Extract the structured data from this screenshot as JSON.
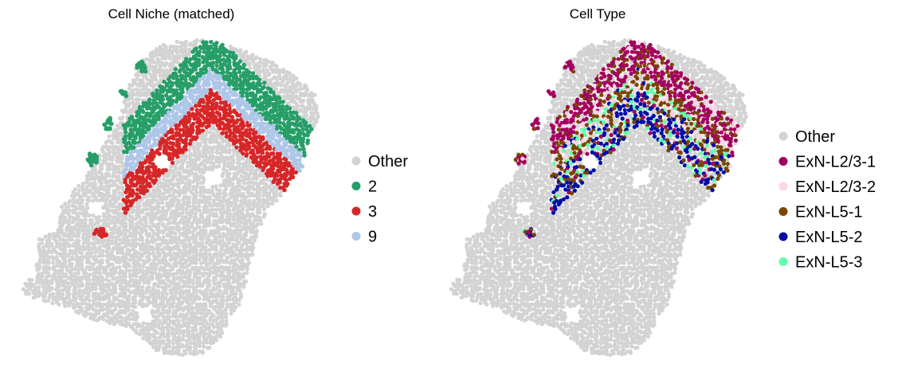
{
  "chart_data": [
    {
      "type": "scatter",
      "title": "Cell Niche (matched)",
      "xlabel": "",
      "ylabel": "",
      "axes_visible": false,
      "legend_position": "right",
      "legend": [
        {
          "label": "Other",
          "color": "#d3d3d3"
        },
        {
          "label": "2",
          "color": "#279e68"
        },
        {
          "label": "3",
          "color": "#d62728"
        },
        {
          "label": "9",
          "color": "#aec7e8"
        }
      ]
    },
    {
      "type": "scatter",
      "title": "Cell Type",
      "xlabel": "",
      "ylabel": "",
      "axes_visible": false,
      "legend_position": "right",
      "legend": [
        {
          "label": "Other",
          "color": "#d3d3d3"
        },
        {
          "label": "ExN-L2/3-1",
          "color": "#a2005e"
        },
        {
          "label": "ExN-L2/3-2",
          "color": "#ffd6e6"
        },
        {
          "label": "ExN-L5-1",
          "color": "#7a4500"
        },
        {
          "label": "ExN-L5-2",
          "color": "#000ea6"
        },
        {
          "label": "ExN-L5-3",
          "color": "#61ffa8"
        }
      ]
    }
  ]
}
